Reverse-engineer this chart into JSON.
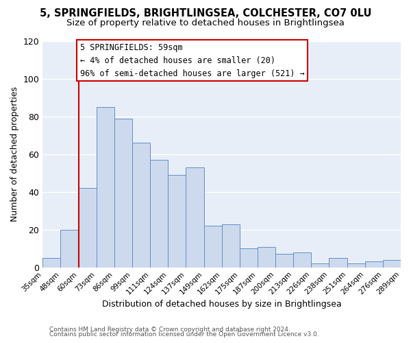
{
  "title": "5, SPRINGFIELDS, BRIGHTLINGSEA, COLCHESTER, CO7 0LU",
  "subtitle": "Size of property relative to detached houses in Brightlingsea",
  "xlabel": "Distribution of detached houses by size in Brightlingsea",
  "ylabel": "Number of detached properties",
  "bar_color": "#cdd9ed",
  "bar_edge_color": "#6090c8",
  "bin_labels": [
    "35sqm",
    "48sqm",
    "60sqm",
    "73sqm",
    "86sqm",
    "99sqm",
    "111sqm",
    "124sqm",
    "137sqm",
    "149sqm",
    "162sqm",
    "175sqm",
    "187sqm",
    "200sqm",
    "213sqm",
    "226sqm",
    "238sqm",
    "251sqm",
    "264sqm",
    "276sqm",
    "289sqm"
  ],
  "bar_heights": [
    5,
    20,
    42,
    85,
    79,
    66,
    57,
    49,
    53,
    22,
    23,
    10,
    11,
    7,
    8,
    2,
    5,
    2,
    3,
    4
  ],
  "ylim": [
    0,
    120
  ],
  "yticks": [
    0,
    20,
    40,
    60,
    80,
    100,
    120
  ],
  "annotation_line1": "5 SPRINGFIELDS: 59sqm",
  "annotation_line2": "← 4% of detached houses are smaller (20)",
  "annotation_line3": "96% of semi-detached houses are larger (521) →",
  "vline_x_index": 2,
  "vline_color": "#cc0000",
  "box_edge_color": "#cc0000",
  "background_color": "#ffffff",
  "plot_bg_color": "#e8eef8",
  "grid_color": "#ffffff",
  "footer_line1": "Contains HM Land Registry data © Crown copyright and database right 2024.",
  "footer_line2": "Contains public sector information licensed under the Open Government Licence v3.0."
}
